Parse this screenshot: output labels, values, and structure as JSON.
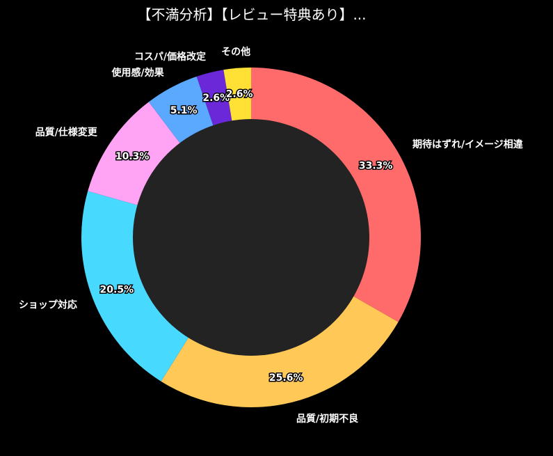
{
  "chart_data": {
    "type": "pie",
    "variant": "donut",
    "title": "【不満分析】【レビュー特典あり】...",
    "start": "top",
    "direction": "clockwise",
    "slices": [
      {
        "label": "期待はずれ/イメージ相違",
        "value": 33.3,
        "pct_label": "33.3%",
        "color": "#ff6b6b"
      },
      {
        "label": "品質/初期不良",
        "value": 25.6,
        "pct_label": "25.6%",
        "color": "#ffc857"
      },
      {
        "label": "ショップ対応",
        "value": 20.5,
        "pct_label": "20.5%",
        "color": "#48d9ff"
      },
      {
        "label": "品質/仕様変更",
        "value": 10.3,
        "pct_label": "10.3%",
        "color": "#ffa3f5"
      },
      {
        "label": "使用感/効果",
        "value": 5.1,
        "pct_label": "5.1%",
        "color": "#5aa9ff"
      },
      {
        "label": "コスパ/価格改定",
        "value": 2.6,
        "pct_label": "2.6%",
        "color": "#6a28d8"
      },
      {
        "label": "その他",
        "value": 2.6,
        "pct_label": "2.6%",
        "color": "#ffe135"
      }
    ],
    "center_color": "#232323",
    "background": "#000000"
  }
}
